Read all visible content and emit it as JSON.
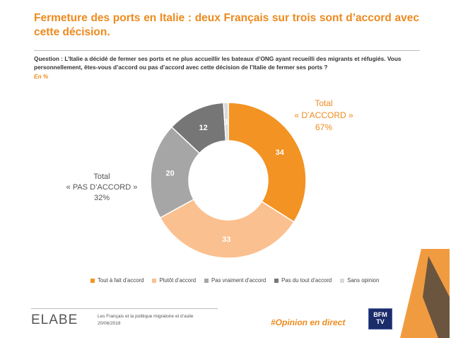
{
  "title": "Fermeture des ports en Italie : deux Français sur trois sont d’accord avec cette décision.",
  "question": "Question : L’Italie a décidé de fermer ses ports et ne plus accueillir les bateaux d’ONG ayant recueilli des migrants et réfugiés. Vous personnellement, êtes-vous d’accord ou pas d’accord avec cette décision de l’Italie de fermer ses ports ?",
  "unit": "En %",
  "groups": {
    "accord": {
      "line1": "Total",
      "line2": "« D’ACCORD »",
      "line3": "67%"
    },
    "pas_accord": {
      "line1": "Total",
      "line2": "« PAS D’ACCORD »",
      "line3": "32%"
    }
  },
  "chart_data": {
    "type": "pie",
    "donut": true,
    "categories": [
      "Tout à fait d’accord",
      "Plutôt d’accord",
      "Pas vraiment d’accord",
      "Pas du tout d’accord",
      "Sans opinion"
    ],
    "values": [
      34,
      33,
      20,
      12,
      1
    ],
    "colors": [
      "#f29323",
      "#fbc08f",
      "#a6a6a6",
      "#767676",
      "#d9d9d9"
    ],
    "label_colors": [
      "#ffffff",
      "#ffffff",
      "#ffffff",
      "#ffffff",
      "#ffffff"
    ],
    "legend_position": "bottom"
  },
  "footer": {
    "logo": "ELABE",
    "source_line1": "Les Français et la politique migratoire et d’asile",
    "source_line2": "20/06/2018",
    "hashtag": "#Opinion en direct",
    "partner_logo": "BFM TV"
  }
}
